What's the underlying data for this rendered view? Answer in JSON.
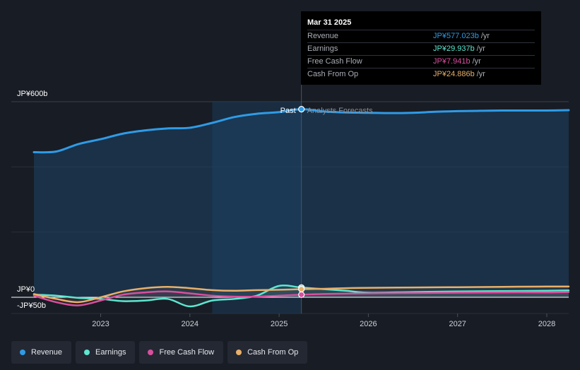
{
  "chart_data": {
    "type": "line",
    "currency_prefix": "JP¥",
    "y_axis": {
      "top_label": "JP¥600b",
      "zero_label": "JP¥0",
      "bottom_label": "-JP¥50b",
      "ylim": [
        -50,
        600
      ]
    },
    "x_ticks": [
      "2023",
      "2024",
      "2025",
      "2026",
      "2027",
      "2028"
    ],
    "x_tick_values": [
      2023.0,
      2024.0,
      2025.0,
      2026.0,
      2027.0,
      2028.0
    ],
    "xlim": [
      2021.96,
      2028.25
    ],
    "divider_x": 2025.25,
    "past_shade_start": 2024.25,
    "past_label": "Past",
    "forecast_label": "Analysts Forecasts",
    "series": [
      {
        "name": "Revenue",
        "color": "#2f9be6",
        "points": [
          [
            2022.25,
            445
          ],
          [
            2022.5,
            447
          ],
          [
            2022.75,
            470
          ],
          [
            2023.0,
            485
          ],
          [
            2023.25,
            502
          ],
          [
            2023.5,
            512
          ],
          [
            2023.75,
            518
          ],
          [
            2024.0,
            520
          ],
          [
            2024.25,
            535
          ],
          [
            2024.5,
            553
          ],
          [
            2024.75,
            563
          ],
          [
            2025.0,
            568
          ],
          [
            2025.25,
            577.023
          ],
          [
            2025.5,
            570
          ],
          [
            2025.75,
            567
          ],
          [
            2026.0,
            566
          ],
          [
            2026.25,
            565
          ],
          [
            2026.5,
            566
          ],
          [
            2026.75,
            569
          ],
          [
            2027.0,
            571
          ],
          [
            2027.25,
            572
          ],
          [
            2027.5,
            573
          ],
          [
            2027.75,
            573
          ],
          [
            2028.0,
            573
          ],
          [
            2028.25,
            574
          ]
        ]
      },
      {
        "name": "Earnings",
        "color": "#5ee6d0",
        "points": [
          [
            2022.25,
            8
          ],
          [
            2022.5,
            5
          ],
          [
            2022.75,
            -2
          ],
          [
            2023.0,
            -5
          ],
          [
            2023.25,
            -12
          ],
          [
            2023.5,
            -10
          ],
          [
            2023.75,
            -5
          ],
          [
            2024.0,
            -28
          ],
          [
            2024.25,
            -10
          ],
          [
            2024.5,
            -5
          ],
          [
            2024.75,
            5
          ],
          [
            2025.0,
            35
          ],
          [
            2025.25,
            29.937
          ],
          [
            2025.5,
            25
          ],
          [
            2025.75,
            20
          ],
          [
            2026.0,
            14
          ],
          [
            2026.5,
            16
          ],
          [
            2027.0,
            18
          ],
          [
            2027.5,
            19
          ],
          [
            2028.0,
            20
          ],
          [
            2028.25,
            21
          ]
        ]
      },
      {
        "name": "Free Cash Flow",
        "color": "#d94f9d",
        "points": [
          [
            2022.25,
            5
          ],
          [
            2022.5,
            -15
          ],
          [
            2022.75,
            -25
          ],
          [
            2023.0,
            -10
          ],
          [
            2023.25,
            8
          ],
          [
            2023.5,
            15
          ],
          [
            2023.75,
            18
          ],
          [
            2024.0,
            12
          ],
          [
            2024.25,
            5
          ],
          [
            2024.5,
            2
          ],
          [
            2024.75,
            2
          ],
          [
            2025.0,
            5
          ],
          [
            2025.25,
            7.941
          ],
          [
            2025.5,
            10
          ],
          [
            2025.75,
            11
          ],
          [
            2026.0,
            12
          ],
          [
            2026.5,
            13
          ],
          [
            2027.0,
            14
          ],
          [
            2027.5,
            15
          ],
          [
            2028.0,
            15
          ],
          [
            2028.25,
            16
          ]
        ]
      },
      {
        "name": "Cash From Op",
        "color": "#e8b06a",
        "points": [
          [
            2022.25,
            10
          ],
          [
            2022.5,
            -5
          ],
          [
            2022.75,
            -15
          ],
          [
            2023.0,
            0
          ],
          [
            2023.25,
            18
          ],
          [
            2023.5,
            28
          ],
          [
            2023.75,
            32
          ],
          [
            2024.0,
            28
          ],
          [
            2024.25,
            22
          ],
          [
            2024.5,
            20
          ],
          [
            2024.75,
            22
          ],
          [
            2025.0,
            23
          ],
          [
            2025.25,
            24.886
          ],
          [
            2025.5,
            26
          ],
          [
            2025.75,
            28
          ],
          [
            2026.0,
            29
          ],
          [
            2026.5,
            30
          ],
          [
            2027.0,
            31
          ],
          [
            2027.5,
            32
          ],
          [
            2028.0,
            33
          ],
          [
            2028.25,
            33
          ]
        ]
      }
    ],
    "tooltip": {
      "date": "Mar 31 2025",
      "unit": "/yr",
      "rows": [
        {
          "label": "Revenue",
          "value": "JP¥577.023b",
          "color": "#2f9be6"
        },
        {
          "label": "Earnings",
          "value": "JP¥29.937b",
          "color": "#5ee6d0"
        },
        {
          "label": "Free Cash Flow",
          "value": "JP¥7.941b",
          "color": "#d94f9d"
        },
        {
          "label": "Cash From Op",
          "value": "JP¥24.886b",
          "color": "#e8b06a"
        }
      ]
    },
    "legend": [
      {
        "label": "Revenue",
        "color": "#2f9be6"
      },
      {
        "label": "Earnings",
        "color": "#5ee6d0"
      },
      {
        "label": "Free Cash Flow",
        "color": "#d94f9d"
      },
      {
        "label": "Cash From Op",
        "color": "#e8b06a"
      }
    ]
  }
}
